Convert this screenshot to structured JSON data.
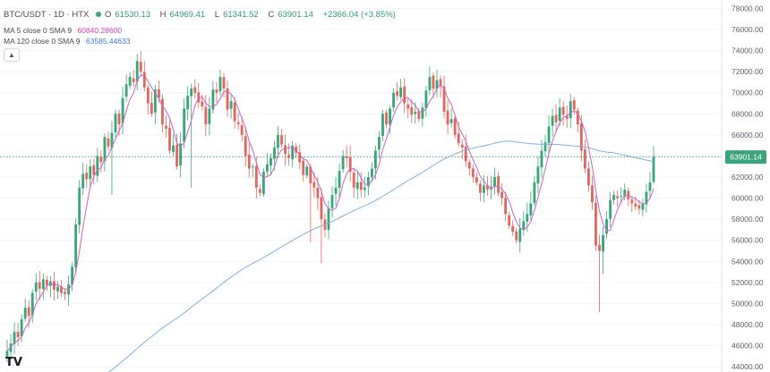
{
  "header": {
    "symbol": "BTC/USDT · 1D · HTX",
    "o_label": "O",
    "o_value": "61530.13",
    "h_label": "H",
    "h_value": "64969.41",
    "l_label": "L",
    "l_value": "61341.52",
    "c_label": "C",
    "c_value": "63901.14",
    "change": "+2366.04 (+3.85%)"
  },
  "indicators": [
    {
      "label": "MA 5 close 0 SMA 9",
      "value": "60840.28600",
      "color": "#d63fbf"
    },
    {
      "label": "MA 120 close 0 SMA 9",
      "value": "63585.44633",
      "color": "#3a7bd5"
    }
  ],
  "collapse_icon": "chevron-up-icon",
  "logo": "TV",
  "colors": {
    "up": "#3aa57a",
    "down": "#e0675d",
    "ma5": "#c765c9",
    "ma120": "#7fb0e3",
    "last_price_bg": "#3aa57a"
  },
  "chart_data": {
    "type": "candlestick",
    "price_axis": {
      "min": 43500,
      "max": 78800,
      "ticks": [
        "78000.00",
        "76000.00",
        "74000.00",
        "72000.00",
        "70000.00",
        "68000.00",
        "66000.00",
        "64000.00",
        "62000.00",
        "60000.00",
        "58000.00",
        "56000.00",
        "54000.00",
        "52000.00",
        "50000.00",
        "48000.00",
        "46000.00",
        "44000.00"
      ]
    },
    "last_price": "63901.14",
    "closes": [
      45500,
      46200,
      47300,
      46800,
      48500,
      49600,
      48800,
      51000,
      52000,
      51400,
      52300,
      51700,
      52100,
      51300,
      51600,
      51000,
      50900,
      51800,
      53500,
      57500,
      61000,
      62300,
      61800,
      63000,
      62200,
      64000,
      63400,
      65800,
      64900,
      66200,
      68000,
      67000,
      69500,
      70800,
      71500,
      71000,
      73000,
      72000,
      70500,
      69000,
      68000,
      70300,
      69500,
      67000,
      66600,
      64500,
      65000,
      63000,
      65200,
      68500,
      69700,
      70400,
      70000,
      69100,
      68700,
      67000,
      68500,
      70300,
      70000,
      71500,
      70400,
      68400,
      69200,
      67300,
      67000,
      66000,
      64000,
      62800,
      63000,
      61000,
      60500,
      62500,
      63200,
      63800,
      64800,
      66000,
      65100,
      64200,
      63800,
      65000,
      64300,
      63400,
      62200,
      63000,
      61400,
      61000,
      60000,
      58000,
      57000,
      59000,
      60300,
      61000,
      62600,
      64000,
      63800,
      62500,
      61000,
      61500,
      60800,
      61000,
      62000,
      62800,
      64500,
      65800,
      68000,
      67000,
      68500,
      70000,
      69700,
      70500,
      69000,
      68500,
      67900,
      68200,
      67500,
      68600,
      70200,
      71500,
      70400,
      71200,
      70600,
      68200,
      67000,
      67500,
      66000,
      65200,
      64800,
      63500,
      62800,
      62000,
      61500,
      60500,
      61200,
      60800,
      61000,
      62000,
      60500,
      60000,
      58500,
      57400,
      56800,
      56000,
      57100,
      57800,
      58500,
      59500,
      61500,
      63000,
      64500,
      65300,
      66800,
      67800,
      67200,
      68600,
      67900,
      67500,
      69200,
      68400,
      67000,
      64500,
      62800,
      61200,
      59600,
      55500,
      55000,
      56500,
      58000,
      59800,
      60300,
      60000,
      60200,
      60800,
      59900,
      59500,
      59200,
      59000,
      59500,
      60600,
      61500,
      63901
    ],
    "ma5_last": "60840.28600",
    "ma120_last": "63585.44633"
  }
}
